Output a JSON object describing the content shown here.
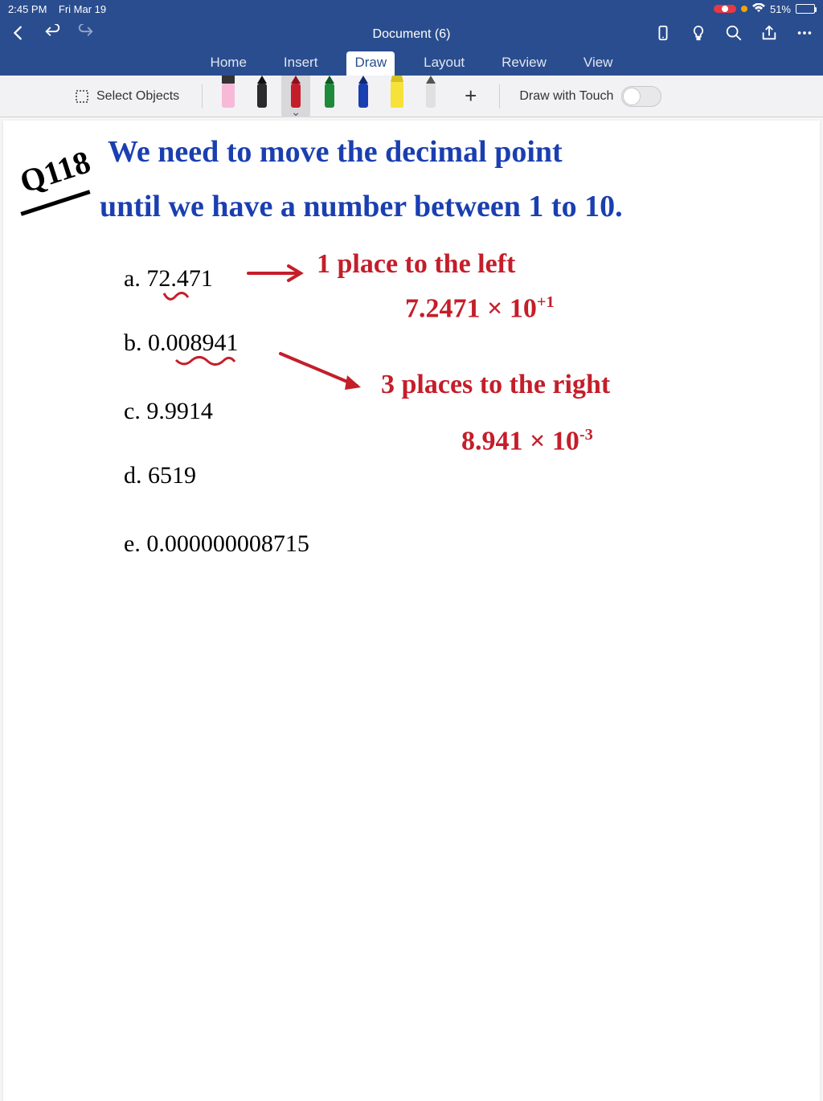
{
  "status": {
    "time": "2:45 PM",
    "date": "Fri Mar 19",
    "battery_pct": "51%",
    "battery_fill_pct": 51
  },
  "titlebar": {
    "doc_title": "Document (6)"
  },
  "tabs": {
    "items": [
      "Home",
      "Insert",
      "Draw",
      "Layout",
      "Review",
      "View"
    ],
    "active_index": 2
  },
  "ribbon": {
    "select_objects_label": "Select Objects",
    "draw_touch_label": "Draw with Touch",
    "draw_touch_on": false,
    "pens": [
      {
        "type": "eraser",
        "body": "#f7b9d7",
        "tip": "#333"
      },
      {
        "type": "pen",
        "body": "#2b2b2b",
        "tip": "#111"
      },
      {
        "type": "pen",
        "body": "#c41e2a",
        "tip": "#8f1220",
        "selected": true
      },
      {
        "type": "pen",
        "body": "#1e8a3a",
        "tip": "#0f5a23"
      },
      {
        "type": "pen",
        "body": "#1a3fb0",
        "tip": "#102a75"
      },
      {
        "type": "highlighter",
        "body": "#f7e23a",
        "tip": "#d6c21e"
      },
      {
        "type": "pen",
        "body": "#e0e0e0",
        "tip": "#555"
      }
    ]
  },
  "colors": {
    "header_bg": "#2a4d8f",
    "ribbon_bg": "#f2f2f4",
    "canvas_bg": "#ffffff",
    "ink_blue": "#1a3fb0",
    "ink_red": "#c41e2a",
    "ink_black": "#000000"
  },
  "content": {
    "question_label": "Q118",
    "blue_line1": "We  need  to  move  the  decimal  point",
    "blue_line2": "until  we  have  a  number  between  1  to  10.",
    "typed_items": {
      "a": "a. 72.471",
      "b": "b. 0.008941",
      "c": "c. 9.9914",
      "d": "d. 6519",
      "e": "e. 0.000000008715"
    },
    "red_a_note": "1  place  to  the  left",
    "red_a_result_base": "7.2471 × 10",
    "red_a_result_exp": "+1",
    "red_b_note": "3  places  to  the  right",
    "red_b_result_base": "8.941 × 10",
    "red_b_result_exp": "-3"
  }
}
